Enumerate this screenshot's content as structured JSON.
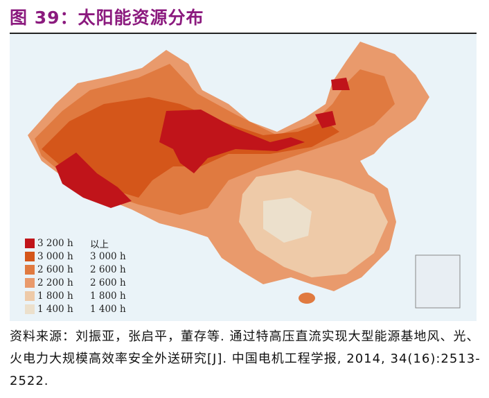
{
  "title": "图 39：太阳能资源分布",
  "legend": [
    {
      "color": "#c0141a",
      "a": "3 200 h",
      "b": "以上"
    },
    {
      "color": "#d4561a",
      "a": "3 000 h",
      "b": "3 000 h"
    },
    {
      "color": "#e07a40",
      "a": "2 600 h",
      "b": "2 600 h"
    },
    {
      "color": "#e99a6c",
      "a": "2 200 h",
      "b": "2 600 h"
    },
    {
      "color": "#eecaa8",
      "a": "1 800 h",
      "b": "1 800 h"
    },
    {
      "color": "#ece0cc",
      "a": "1 400 h",
      "b": "1 400 h"
    }
  ],
  "source": "资料来源：刘振亚，张启平，董存等. 通过特高压直流实现大型能源基地风、光、火电力大规模高效率安全外送研究[J]. 中国电机工程学报, 2014, 34(16):2513-2522."
}
